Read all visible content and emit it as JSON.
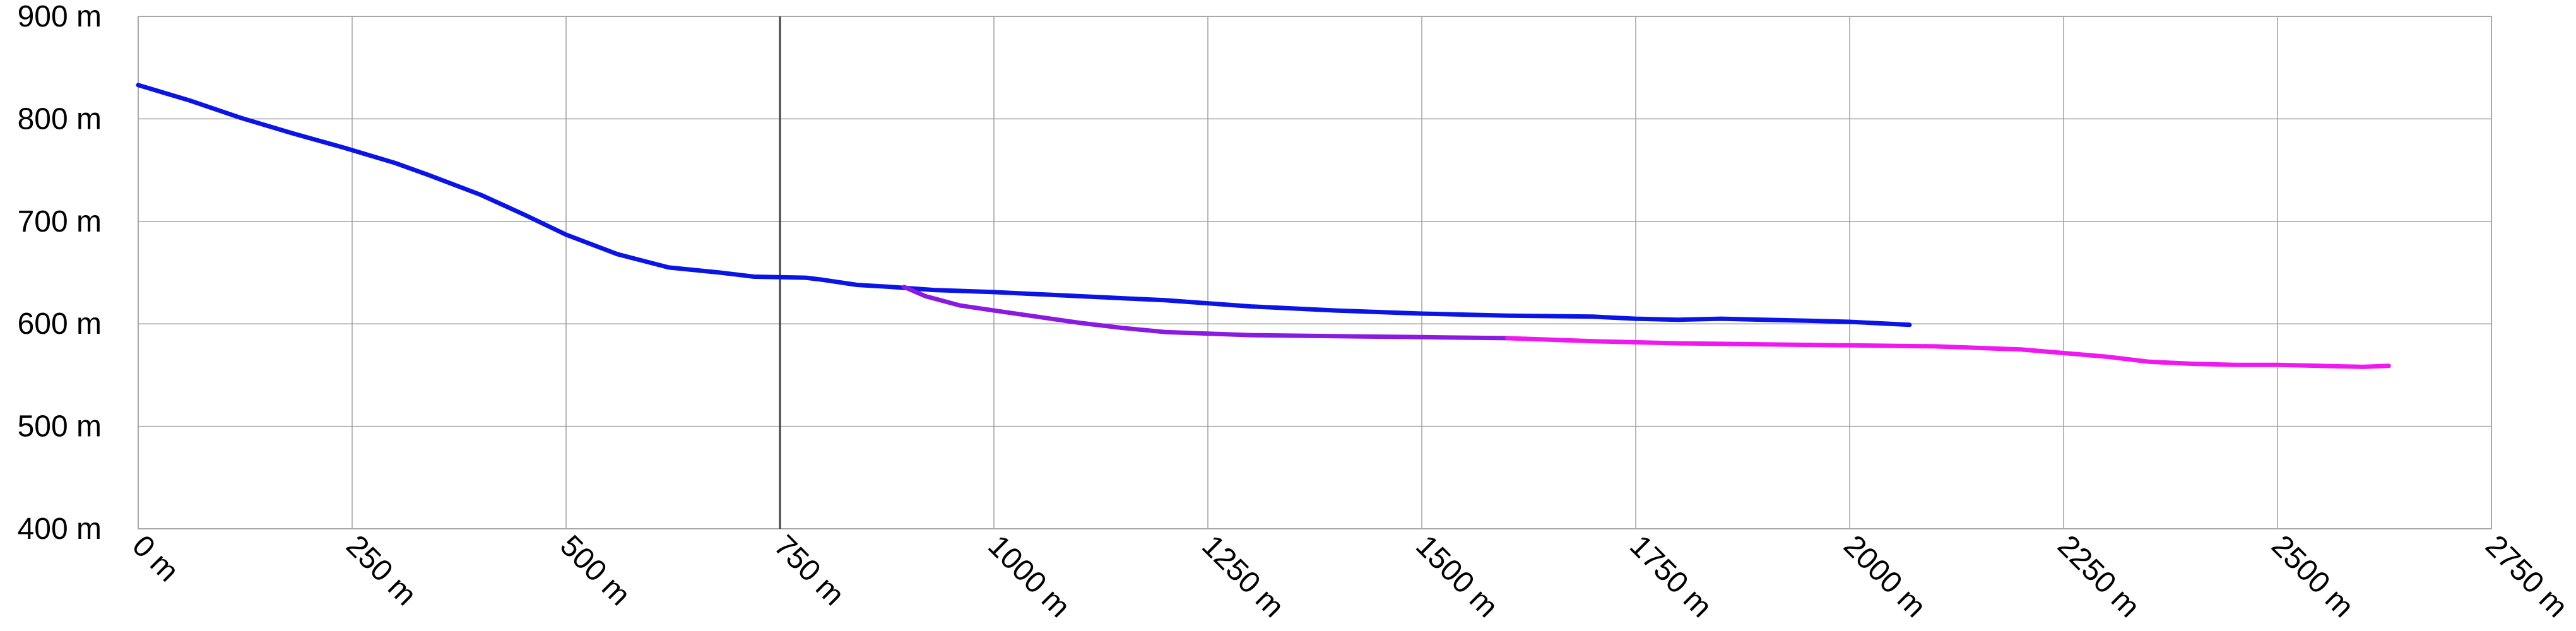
{
  "chart_data": {
    "type": "line",
    "title": "",
    "xlabel": "",
    "ylabel": "",
    "xlim": [
      0,
      2750
    ],
    "ylim": [
      400,
      900
    ],
    "x_ticks": [
      0,
      250,
      500,
      750,
      1000,
      1250,
      1500,
      1750,
      2000,
      2250,
      2500,
      2750
    ],
    "x_tick_labels": [
      "0 m",
      "250 m",
      "500 m",
      "750 m",
      "1000 m",
      "1250 m",
      "1500 m",
      "1750 m",
      "2000 m",
      "2250 m",
      "2500 m",
      "2750 m"
    ],
    "y_ticks": [
      400,
      500,
      600,
      700,
      800,
      900
    ],
    "y_tick_labels": [
      "400 m",
      "500 m",
      "600 m",
      "700 m",
      "800 m",
      "900 m"
    ],
    "grid": true,
    "highlight_vline": 750,
    "series": [
      {
        "color": "#0a14e6",
        "x": [
          0,
          60,
          120,
          180,
          240,
          300,
          340,
          400,
          450,
          500,
          560,
          620,
          680,
          720,
          780,
          800,
          840,
          880,
          930,
          1000,
          1100,
          1200,
          1300,
          1400,
          1500,
          1600,
          1700,
          1750,
          1800,
          1850,
          1900,
          1950,
          2000,
          2070
        ],
        "y": [
          833,
          818,
          801,
          786,
          772,
          757,
          745,
          726,
          707,
          687,
          668,
          655,
          650,
          646,
          645,
          643,
          638,
          636,
          633,
          631,
          627,
          623,
          617,
          613,
          610,
          608,
          607,
          605,
          604,
          605,
          604,
          603,
          602,
          599
        ]
      },
      {
        "color": "#8a1ae0",
        "x": [
          895,
          920,
          960,
          1000,
          1050,
          1100,
          1150,
          1200,
          1300,
          1400,
          1500,
          1600
        ],
        "y": [
          636,
          627,
          618,
          613,
          607,
          601,
          596,
          592,
          589,
          588,
          587,
          586
        ]
      },
      {
        "color": "#f018f0",
        "x": [
          1600,
          1700,
          1800,
          1900,
          2000,
          2100,
          2200,
          2300,
          2350,
          2400,
          2450,
          2500,
          2550,
          2600,
          2630
        ],
        "y": [
          586,
          583,
          581,
          580,
          579,
          578,
          575,
          568,
          563,
          561,
          560,
          560,
          559,
          558,
          559
        ]
      }
    ]
  }
}
